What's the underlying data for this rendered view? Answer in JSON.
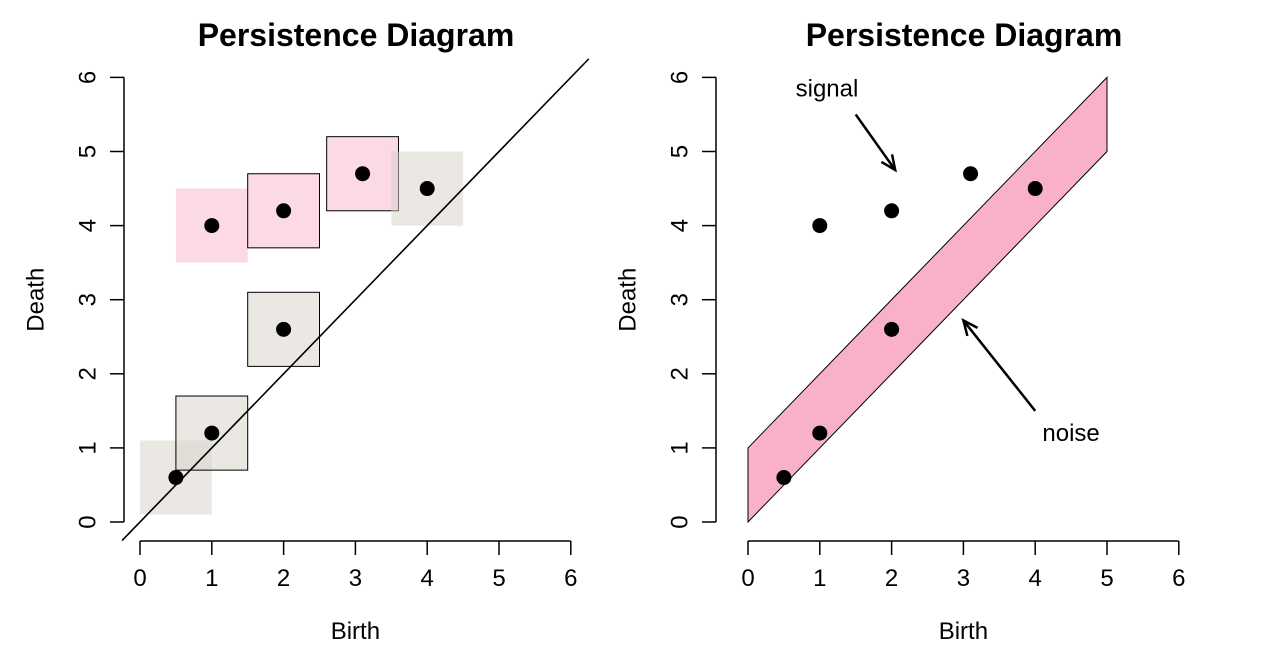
{
  "chart_data": [
    {
      "type": "scatter",
      "title": "Persistence Diagram",
      "xlabel": "Birth",
      "ylabel": "Death",
      "xlim": [
        0,
        6
      ],
      "ylim": [
        0,
        6
      ],
      "xticks": [
        "0",
        "1",
        "2",
        "3",
        "4",
        "5",
        "6"
      ],
      "yticks": [
        "0",
        "1",
        "2",
        "3",
        "4",
        "5",
        "6"
      ],
      "points": [
        {
          "x": 0.5,
          "y": 0.6
        },
        {
          "x": 1,
          "y": 1.2
        },
        {
          "x": 2,
          "y": 2.6
        },
        {
          "x": 1,
          "y": 4
        },
        {
          "x": 2,
          "y": 4.2
        },
        {
          "x": 3.1,
          "y": 4.7
        },
        {
          "x": 4,
          "y": 4.5
        }
      ],
      "squares_half_width": 0.5,
      "squares": [
        {
          "x": 0.5,
          "y": 0.6,
          "color": "#d8d2ca",
          "opacity": 0.5,
          "outline": false
        },
        {
          "x": 1,
          "y": 1.2,
          "color": "#d8d2ca",
          "opacity": 0.5,
          "outline": true
        },
        {
          "x": 2,
          "y": 2.6,
          "color": "#d8d2ca",
          "opacity": 0.5,
          "outline": true
        },
        {
          "x": 1,
          "y": 4,
          "color": "#f7b3cc",
          "opacity": 0.5,
          "outline": false
        },
        {
          "x": 2,
          "y": 4.2,
          "color": "#f7b3cc",
          "opacity": 0.5,
          "outline": true
        },
        {
          "x": 3.1,
          "y": 4.7,
          "color": "#f7b3cc",
          "opacity": 0.5,
          "outline": true
        },
        {
          "x": 4,
          "y": 4.5,
          "color": "#d8d2ca",
          "opacity": 0.5,
          "outline": false
        }
      ],
      "diagonal": "y = x"
    },
    {
      "type": "scatter",
      "title": "Persistence Diagram",
      "xlabel": "Birth",
      "ylabel": "Death",
      "xlim": [
        0,
        6
      ],
      "ylim": [
        0,
        6
      ],
      "xticks": [
        "0",
        "1",
        "2",
        "3",
        "4",
        "5",
        "6"
      ],
      "yticks": [
        "0",
        "1",
        "2",
        "3",
        "4",
        "5",
        "6"
      ],
      "points": [
        {
          "x": 0.5,
          "y": 0.6
        },
        {
          "x": 1,
          "y": 1.2
        },
        {
          "x": 2,
          "y": 2.6
        },
        {
          "x": 1,
          "y": 4
        },
        {
          "x": 2,
          "y": 4.2
        },
        {
          "x": 3.1,
          "y": 4.7
        },
        {
          "x": 4,
          "y": 4.5
        }
      ],
      "band": {
        "x_from": 0,
        "x_to": 5,
        "offset": 1,
        "color": "#f8b1c8"
      },
      "annotations": [
        {
          "text": "signal",
          "text_x": 1.1,
          "text_y": 5.85,
          "arrow_from": [
            1.5,
            5.5
          ],
          "arrow_to": [
            2.05,
            4.75
          ]
        },
        {
          "text": "noise",
          "text_x": 4.5,
          "text_y": 1.2,
          "arrow_from": [
            4,
            1.5
          ],
          "arrow_to": [
            3,
            2.72
          ]
        }
      ]
    }
  ]
}
